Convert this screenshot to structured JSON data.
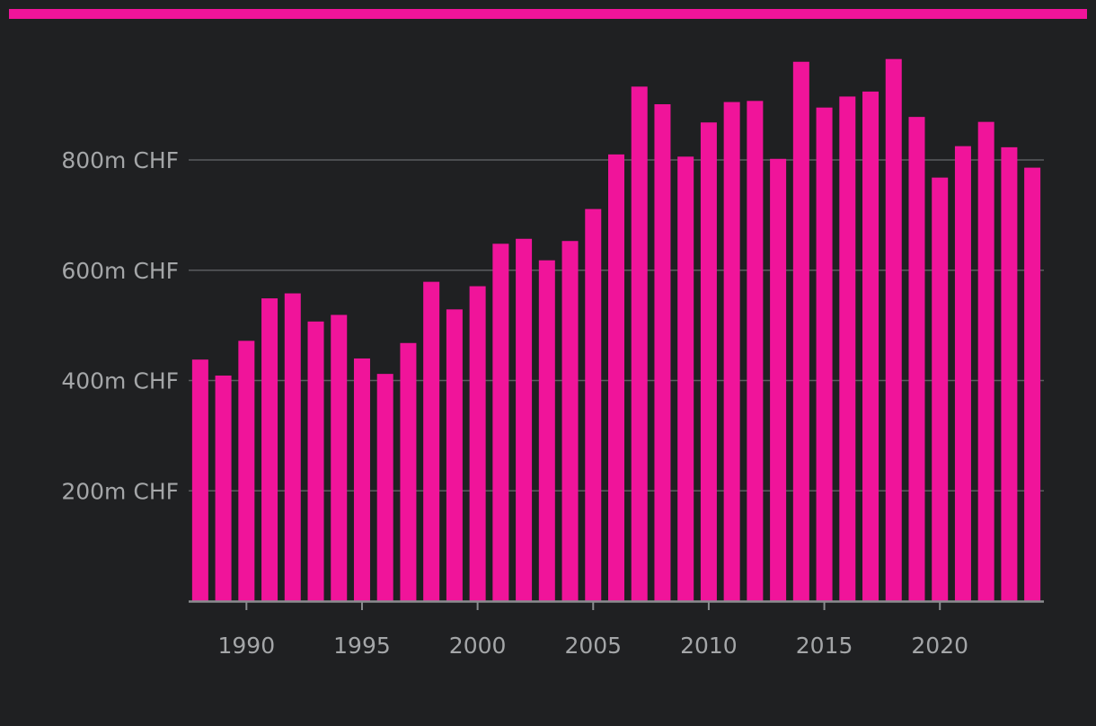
{
  "colors": {
    "background": "#1f2022",
    "accent": "#f0149a",
    "bar": "#f0149a",
    "grid": "#5a5c5f",
    "axis": "#8a8c8f",
    "tick_label": "#a4a6a8"
  },
  "chart_data": {
    "type": "bar",
    "title": "",
    "xlabel": "",
    "ylabel": "",
    "unit": "m CHF",
    "ylim": [
      0,
      1000
    ],
    "xlim": [
      1987.5,
      2024.5
    ],
    "grid": true,
    "y_ticks": [
      {
        "value": 200,
        "label": "200m CHF"
      },
      {
        "value": 400,
        "label": "400m CHF"
      },
      {
        "value": 600,
        "label": "600m CHF"
      },
      {
        "value": 800,
        "label": "800m CHF"
      }
    ],
    "x_ticks": [
      {
        "value": 1990,
        "label": "1990"
      },
      {
        "value": 1995,
        "label": "1995"
      },
      {
        "value": 2000,
        "label": "2000"
      },
      {
        "value": 2005,
        "label": "2005"
      },
      {
        "value": 2010,
        "label": "2010"
      },
      {
        "value": 2015,
        "label": "2015"
      },
      {
        "value": 2020,
        "label": "2020"
      }
    ],
    "x": [
      1988,
      1989,
      1990,
      1991,
      1992,
      1993,
      1994,
      1995,
      1996,
      1997,
      1998,
      1999,
      2000,
      2001,
      2002,
      2003,
      2004,
      2005,
      2006,
      2007,
      2008,
      2009,
      2010,
      2011,
      2012,
      2013,
      2014,
      2015,
      2016,
      2017,
      2018,
      2019,
      2020,
      2021,
      2022,
      2023,
      2024
    ],
    "values": [
      438,
      409,
      472,
      549,
      558,
      507,
      519,
      440,
      412,
      468,
      579,
      529,
      571,
      648,
      657,
      618,
      653,
      711,
      810,
      933,
      901,
      806,
      868,
      905,
      907,
      802,
      978,
      895,
      915,
      924,
      983,
      878,
      768,
      825,
      869,
      823,
      786
    ]
  }
}
